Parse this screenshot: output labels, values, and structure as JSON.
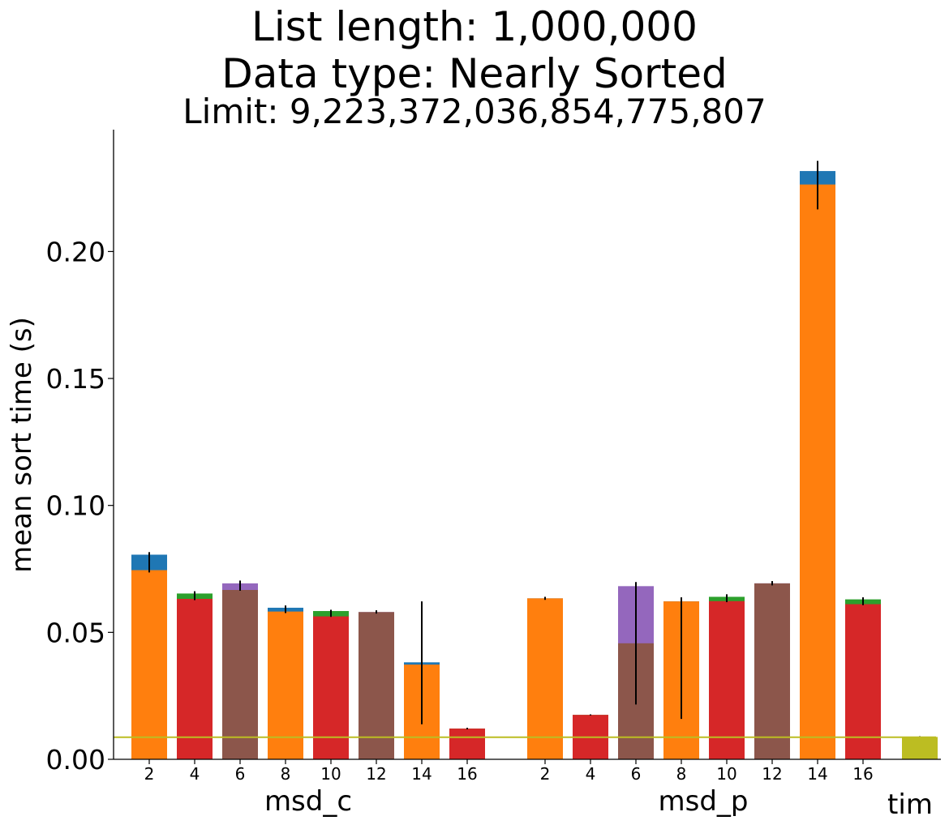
{
  "chart_data": {
    "type": "bar",
    "title": "List length: 1,000,000",
    "subtitle": "Data type: Nearly Sorted",
    "subtitle2": "Limit: 9,223,372,036,854,775,807",
    "xlabel": "",
    "ylabel": "mean sort time (s)",
    "ylim": [
      0,
      0.248
    ],
    "yticks": [
      0.0,
      0.05,
      0.1,
      0.15,
      0.2
    ],
    "ytick_labels": [
      "0.00",
      "0.05",
      "0.10",
      "0.15",
      "0.20"
    ],
    "grid": false,
    "legend": "none",
    "groups": [
      {
        "name": "msd_c",
        "categories": [
          "2",
          "4",
          "6",
          "8",
          "10",
          "12",
          "14",
          "16"
        ],
        "bars": [
          {
            "label": "2",
            "back_value": 0.0806,
            "back_color": "#1f77b4",
            "front_value": 0.0745,
            "front_color": "#ff7f0e",
            "error": [
              0.0736,
              0.0816
            ]
          },
          {
            "label": "4",
            "back_value": 0.0653,
            "back_color": "#2ca02c",
            "front_value": 0.0632,
            "front_color": "#d62728",
            "error": [
              0.0627,
              0.0662
            ]
          },
          {
            "label": "6",
            "back_value": 0.0693,
            "back_color": "#9467bd",
            "front_value": 0.0667,
            "front_color": "#8c564b",
            "error": [
              0.0664,
              0.0704
            ]
          },
          {
            "label": "8",
            "back_value": 0.0597,
            "back_color": "#1f77b4",
            "front_value": 0.0582,
            "front_color": "#ff7f0e",
            "error": [
              0.0576,
              0.0606
            ]
          },
          {
            "label": "10",
            "back_value": 0.0584,
            "back_color": "#2ca02c",
            "front_value": 0.0563,
            "front_color": "#d62728",
            "error": [
              0.0561,
              0.0589
            ]
          },
          {
            "label": "12",
            "back_value": 0.058,
            "back_color": "#9467bd",
            "front_value": 0.058,
            "front_color": "#8c564b",
            "error": [
              0.0574,
              0.0587
            ]
          },
          {
            "label": "14",
            "back_value": 0.0382,
            "back_color": "#1f77b4",
            "front_value": 0.0373,
            "front_color": "#ff7f0e",
            "error": [
              0.0138,
              0.0622
            ]
          },
          {
            "label": "16",
            "back_value": 0.0121,
            "back_color": "#2ca02c",
            "front_value": 0.0121,
            "front_color": "#d62728",
            "error": [
              0.0118,
              0.0124
            ]
          }
        ]
      },
      {
        "name": "msd_p",
        "categories": [
          "2",
          "4",
          "6",
          "8",
          "10",
          "12",
          "14",
          "16"
        ],
        "bars": [
          {
            "label": "2",
            "back_value": 0.0634,
            "back_color": "#1f77b4",
            "front_value": 0.0634,
            "front_color": "#ff7f0e",
            "error": [
              0.0628,
              0.064
            ]
          },
          {
            "label": "4",
            "back_value": 0.0175,
            "back_color": "#2ca02c",
            "front_value": 0.0175,
            "front_color": "#d62728",
            "error": [
              0.0173,
              0.0177
            ]
          },
          {
            "label": "6",
            "back_value": 0.0682,
            "back_color": "#9467bd",
            "front_value": 0.0457,
            "front_color": "#8c564b",
            "error": [
              0.0216,
              0.0698
            ]
          },
          {
            "label": "8",
            "back_value": 0.0622,
            "back_color": "#1f77b4",
            "front_value": 0.0622,
            "front_color": "#ff7f0e",
            "error": [
              0.0159,
              0.0638
            ]
          },
          {
            "label": "10",
            "back_value": 0.064,
            "back_color": "#2ca02c",
            "front_value": 0.0623,
            "front_color": "#d62728",
            "error": [
              0.0619,
              0.065
            ]
          },
          {
            "label": "12",
            "back_value": 0.0693,
            "back_color": "#9467bd",
            "front_value": 0.0693,
            "front_color": "#8c564b",
            "error": [
              0.0685,
              0.0702
            ]
          },
          {
            "label": "14",
            "back_value": 0.2317,
            "back_color": "#1f77b4",
            "front_value": 0.2264,
            "front_color": "#ff7f0e",
            "error": [
              0.2166,
              0.2357
            ]
          },
          {
            "label": "16",
            "back_value": 0.063,
            "back_color": "#2ca02c",
            "front_value": 0.0611,
            "front_color": "#d62728",
            "error": [
              0.0607,
              0.0638
            ]
          }
        ]
      },
      {
        "name": "tim",
        "categories": [],
        "bars": [
          {
            "label": "",
            "back_value": 0.0088,
            "back_color": "#bcbd22",
            "front_value": 0.0088,
            "front_color": "#bcbd22",
            "error": [
              0.0085,
              0.0091
            ]
          }
        ]
      }
    ],
    "reference_line": {
      "value": 0.0087,
      "color": "#bcbd22"
    }
  }
}
